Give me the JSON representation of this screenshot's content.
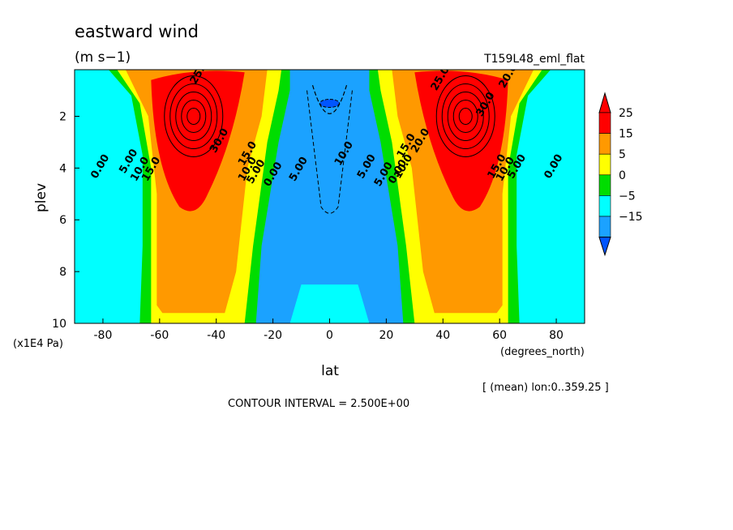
{
  "chart_data": {
    "type": "heatmap",
    "title": "eastward wind",
    "units": "(m s−1)",
    "run_name": "T159L48_eml_flat",
    "xlabel": "lat",
    "x_units": "(degrees_north)",
    "ylabel": "plev",
    "y_units": "(x1E4 Pa)",
    "xlim": [
      -90,
      90
    ],
    "ylim": [
      0.2,
      10
    ],
    "y_inverted": true,
    "x_ticks": [
      "-80",
      "-60",
      "-40",
      "-20",
      "0",
      "20",
      "40",
      "60",
      "80"
    ],
    "y_ticks": [
      "2",
      "4",
      "6",
      "8",
      "10"
    ],
    "footer_mean": "[ (mean) lon:0..359.25 ]",
    "contour_interval": "CONTOUR INTERVAL = 2.500E+00",
    "colorbar": {
      "labels": [
        "25",
        "15",
        "5",
        "0",
        "−5",
        "−15"
      ],
      "colors": [
        "#ff0000",
        "#ff9900",
        "#ffff00",
        "#00dd00",
        "#00ffff",
        "#1ba2ff",
        "#0055ff"
      ]
    },
    "jets": [
      {
        "lat": -48,
        "plev": 2.0,
        "max": 35
      },
      {
        "lat": 48,
        "plev": 2.0,
        "max": 35
      }
    ],
    "contour_labels": [
      {
        "text": "25.0",
        "lat": -45,
        "plev": 0.35
      },
      {
        "text": "30.0",
        "lat": -38,
        "plev": 3.0
      },
      {
        "text": "15.0",
        "lat": -28,
        "plev": 3.5
      },
      {
        "text": "10.0",
        "lat": -28,
        "plev": 4.1
      },
      {
        "text": "5.00",
        "lat": -25,
        "plev": 4.2
      },
      {
        "text": "0.00",
        "lat": -19,
        "plev": 4.3
      },
      {
        "text": "5.00",
        "lat": -10,
        "plev": 4.1
      },
      {
        "text": "10.0",
        "lat": 6,
        "plev": 3.5
      },
      {
        "text": "5.00",
        "lat": 14,
        "plev": 4.0
      },
      {
        "text": "5.00",
        "lat": 20,
        "plev": 4.3
      },
      {
        "text": "0.00",
        "lat": 25,
        "plev": 4.2
      },
      {
        "text": "10.0",
        "lat": 27,
        "plev": 4.0
      },
      {
        "text": "15.0",
        "lat": 28,
        "plev": 3.2
      },
      {
        "text": "20.0",
        "lat": 33,
        "plev": 3.0
      },
      {
        "text": "25.0",
        "lat": 40,
        "plev": 0.6
      },
      {
        "text": "30.0",
        "lat": 56,
        "plev": 1.6
      },
      {
        "text": "20.0",
        "lat": 64,
        "plev": 0.5
      },
      {
        "text": "15.0",
        "lat": 60,
        "plev": 4.0
      },
      {
        "text": "10.0",
        "lat": 63,
        "plev": 4.1
      },
      {
        "text": "5.00",
        "lat": 67,
        "plev": 4.0
      },
      {
        "text": "0.00",
        "lat": 80,
        "plev": 4.0
      },
      {
        "text": "0.00",
        "lat": -80,
        "plev": 4.0
      },
      {
        "text": "5.00",
        "lat": -70,
        "plev": 3.8
      },
      {
        "text": "10.0",
        "lat": -66,
        "plev": 4.1
      },
      {
        "text": "15.0",
        "lat": -62,
        "plev": 4.1
      }
    ]
  }
}
